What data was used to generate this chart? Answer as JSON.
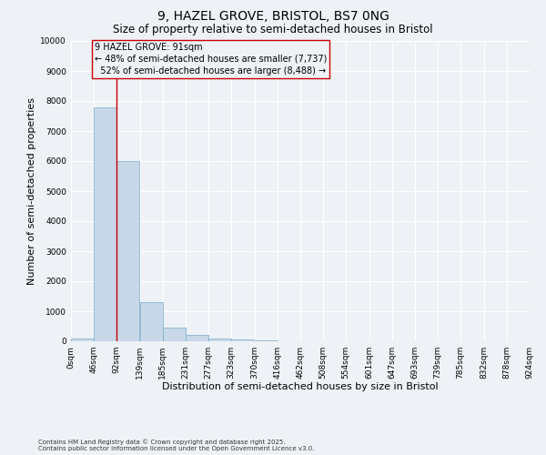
{
  "title": "9, HAZEL GROVE, BRISTOL, BS7 0NG",
  "subtitle": "Size of property relative to semi-detached houses in Bristol",
  "xlabel": "Distribution of semi-detached houses by size in Bristol",
  "ylabel": "Number of semi-detached properties",
  "footnote1": "Contains HM Land Registry data © Crown copyright and database right 2025.",
  "footnote2": "Contains public sector information licensed under the Open Government Licence v3.0.",
  "bar_edges": [
    0,
    46,
    92,
    139,
    185,
    231,
    277,
    323,
    370,
    416,
    462,
    508,
    554,
    601,
    647,
    693,
    739,
    785,
    832,
    878,
    924
  ],
  "bar_labels": [
    "0sqm",
    "46sqm",
    "92sqm",
    "139sqm",
    "185sqm",
    "231sqm",
    "277sqm",
    "323sqm",
    "370sqm",
    "416sqm",
    "462sqm",
    "508sqm",
    "554sqm",
    "601sqm",
    "647sqm",
    "693sqm",
    "739sqm",
    "785sqm",
    "832sqm",
    "878sqm",
    "924sqm"
  ],
  "bar_values": [
    100,
    7800,
    6000,
    1300,
    450,
    200,
    100,
    50,
    30,
    10,
    10,
    5,
    5,
    3,
    2,
    2,
    1,
    1,
    0,
    0
  ],
  "bar_color": "#c8d8e8",
  "bar_edge_color": "#7aaac8",
  "property_size": 91,
  "property_label": "9 HAZEL GROVE: 91sqm",
  "pct_smaller": 48,
  "n_smaller": 7737,
  "pct_larger": 52,
  "n_larger": 8488,
  "vline_color": "#cc0000",
  "annotation_box_color": "#cc0000",
  "ylim": [
    0,
    10000
  ],
  "yticks": [
    0,
    1000,
    2000,
    3000,
    4000,
    5000,
    6000,
    7000,
    8000,
    9000,
    10000
  ],
  "background_color": "#eef2f7",
  "grid_color": "#ffffff",
  "title_fontsize": 10,
  "subtitle_fontsize": 8.5,
  "axis_label_fontsize": 8,
  "tick_fontsize": 6.5,
  "annot_fontsize": 7,
  "footnote_fontsize": 5
}
